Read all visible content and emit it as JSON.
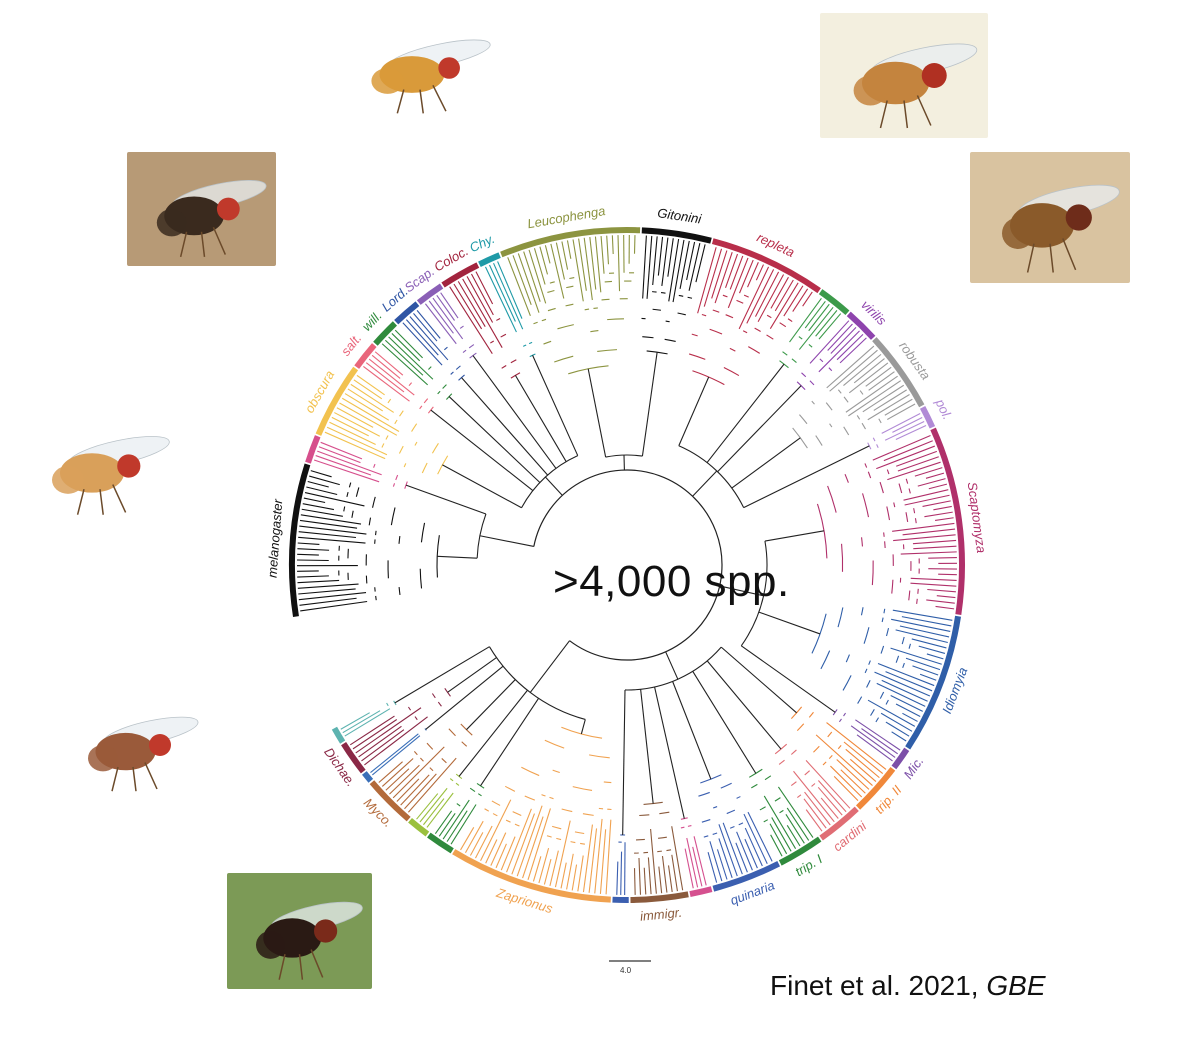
{
  "center_label": ">4,000 spp.",
  "citation": {
    "authors": "Finet et al. 2021, ",
    "journal": "GBE"
  },
  "scale_bar_label": "4.0",
  "clades": [
    {
      "name": "melanogaster",
      "color": "#111111",
      "tips": 26,
      "label_italic": true
    },
    {
      "name": "",
      "color": "#d64f8c",
      "tips": 5
    },
    {
      "name": "obscura",
      "color": "#f2c24f",
      "tips": 13,
      "label_italic": true
    },
    {
      "name": "salt.",
      "color": "#e9667b",
      "tips": 5,
      "label_italic": true
    },
    {
      "name": "will.",
      "color": "#2f8a3c",
      "tips": 5,
      "label_italic": true
    },
    {
      "name": "Lord.",
      "color": "#2f55a4",
      "tips": 5,
      "label_italic": true
    },
    {
      "name": "Scap.",
      "color": "#8a5fb6",
      "tips": 5,
      "label_italic": true
    },
    {
      "name": "Coloc.",
      "color": "#a2243e",
      "tips": 7,
      "label_italic": true
    },
    {
      "name": "Chy.",
      "color": "#1f9aa7",
      "tips": 4,
      "label_italic": true
    },
    {
      "name": "Leucophenga",
      "color": "#8c9440",
      "tips": 24,
      "label_italic": true
    },
    {
      "name": "Gitonini",
      "color": "#111111",
      "tips": 12,
      "label_italic": true
    },
    {
      "name": "repleta",
      "color": "#b82e4a",
      "tips": 20,
      "label_italic": true
    },
    {
      "name": "",
      "color": "#3c9a4a",
      "tips": 6
    },
    {
      "name": "virilis",
      "color": "#8e44ad",
      "tips": 6,
      "label_italic": true
    },
    {
      "name": "robusta",
      "color": "#9a9a9a",
      "tips": 14,
      "label_italic": true
    },
    {
      "name": "pol.",
      "color": "#b18ad6",
      "tips": 4,
      "label_italic": true
    },
    {
      "name": "Scaptomyza",
      "color": "#b0306a",
      "tips": 32,
      "label_italic": true
    },
    {
      "name": "Idiomyia",
      "color": "#2f5ea8",
      "tips": 24,
      "label_italic": true
    },
    {
      "name": "Mic.",
      "color": "#7c4fa8",
      "tips": 4,
      "label_italic": true
    },
    {
      "name": "trip. II",
      "color": "#f0883a",
      "tips": 9,
      "label_italic": true
    },
    {
      "name": "cardini",
      "color": "#e06d74",
      "tips": 8,
      "label_italic": true
    },
    {
      "name": "trip. I",
      "color": "#2f8a3c",
      "tips": 8,
      "label_italic": true
    },
    {
      "name": "quinaria",
      "color": "#3b5fb0",
      "tips": 12,
      "label_italic": true
    },
    {
      "name": "",
      "color": "#d5508f",
      "tips": 4
    },
    {
      "name": "immigr.",
      "color": "#8a5a3c",
      "tips": 10,
      "label_italic": true
    },
    {
      "name": "",
      "color": "#3b5fb0",
      "tips": 3
    },
    {
      "name": "Zaprionus",
      "color": "#f0a250",
      "tips": 28,
      "label_italic": true
    },
    {
      "name": "",
      "color": "#2f8a3c",
      "tips": 5
    },
    {
      "name": "",
      "color": "#9ac03e",
      "tips": 4
    },
    {
      "name": "Myco.",
      "color": "#b36a3a",
      "tips": 9,
      "label_italic": true
    },
    {
      "name": "",
      "color": "#3a6fb8",
      "tips": 2
    },
    {
      "name": "Dichae.",
      "color": "#8a2846",
      "tips": 6,
      "label_italic": true
    },
    {
      "name": "",
      "color": "#5db3b0",
      "tips": 3
    }
  ],
  "photos": [
    {
      "name": "fly-photo-top",
      "bg": "#ffffff",
      "body": "#d99a3a",
      "eye": "#c0392b"
    },
    {
      "name": "fly-photo-top-right",
      "bg": "#f3efdf",
      "body": "#c4843e",
      "eye": "#b03022"
    },
    {
      "name": "fly-photo-upper-left",
      "bg": "#b79a76",
      "body": "#3a2a1e",
      "eye": "#c0392b"
    },
    {
      "name": "fly-photo-right",
      "bg": "#d9c3a0",
      "body": "#8a5a2a",
      "eye": "#6e2c1a"
    },
    {
      "name": "fly-photo-left",
      "bg": "#ffffff",
      "body": "#d9a05a",
      "eye": "#c0392b"
    },
    {
      "name": "fly-photo-lower-left",
      "bg": "#ffffff",
      "body": "#9a5a3a",
      "eye": "#c0392b"
    },
    {
      "name": "fly-photo-bottom-left",
      "bg": "#7c9a56",
      "body": "#2a1a14",
      "eye": "#7a2a1a"
    }
  ]
}
